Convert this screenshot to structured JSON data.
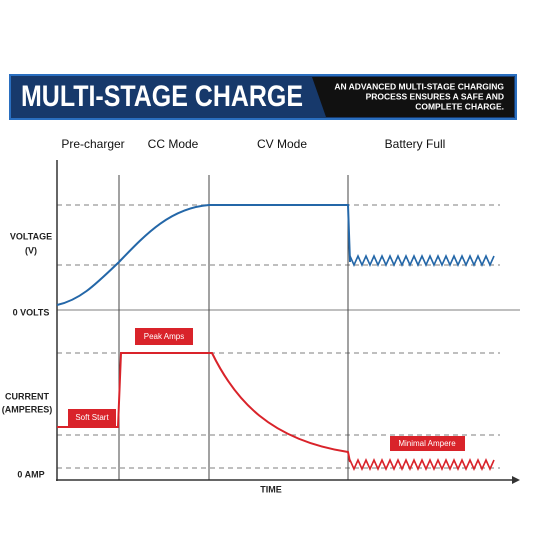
{
  "header": {
    "title": "MULTI-STAGE CHARGE",
    "subtitle": [
      "AN ADVANCED MULTI-STAGE CHARGING",
      "PROCESS ENSURES A SAFE AND",
      "COMPLETE CHARGE."
    ]
  },
  "stages": [
    "Pre-charger",
    "CC Mode",
    "CV Mode",
    "Battery Full"
  ],
  "axis_labels": {
    "voltage": [
      "VOLTAGE",
      "(V)"
    ],
    "zero_volts": "0 VOLTS",
    "current": [
      "CURRENT",
      "(AMPERES)"
    ],
    "zero_amp": "0 AMP",
    "time": "TIME"
  },
  "annotations": {
    "soft_start": "Soft Start",
    "peak_amps": "Peak Amps",
    "minimal_ampere": "Minimal Ampere"
  }
}
